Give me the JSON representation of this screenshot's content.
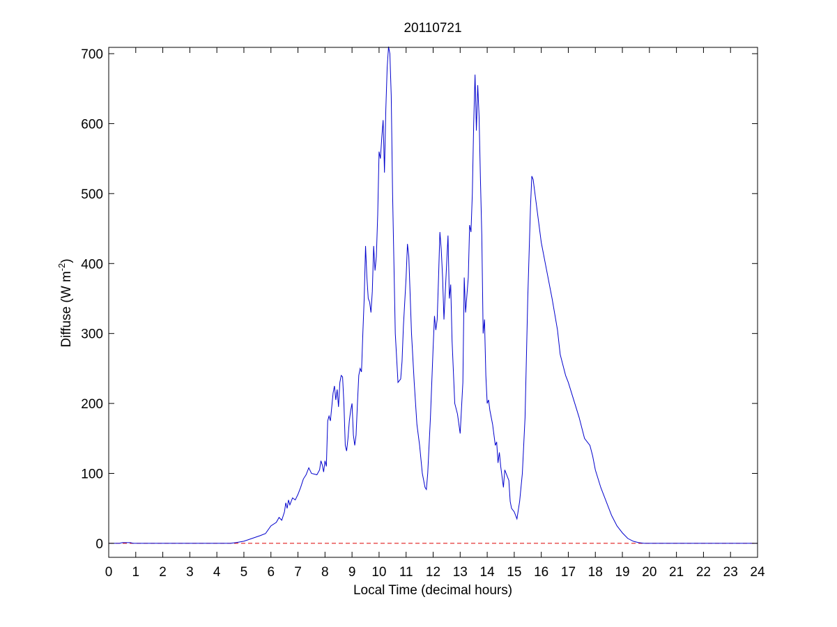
{
  "chart_data": {
    "type": "line",
    "title": "20110721",
    "xlabel": "Local Time (decimal hours)",
    "ylabel": [
      "Diffuse (W m",
      "-2",
      ")"
    ],
    "xlim": [
      0,
      24
    ],
    "ylim": [
      -20,
      709
    ],
    "xticks": [
      0,
      1,
      2,
      3,
      4,
      5,
      6,
      7,
      8,
      9,
      10,
      11,
      12,
      13,
      14,
      15,
      16,
      17,
      18,
      19,
      20,
      21,
      22,
      23,
      24
    ],
    "yticks": [
      0,
      100,
      200,
      300,
      400,
      500,
      600,
      700
    ],
    "reference_line": {
      "value": 0,
      "color": "#dd0000",
      "style": "dashed"
    },
    "series": [
      {
        "color": "#0000cc",
        "x": [
          0,
          0.4,
          0.5,
          0.8,
          0.9,
          4.5,
          4.7,
          5.0,
          5.3,
          5.6,
          5.8,
          6.0,
          6.2,
          6.3,
          6.4,
          6.5,
          6.55,
          6.6,
          6.65,
          6.7,
          6.8,
          6.9,
          7.0,
          7.1,
          7.2,
          7.3,
          7.4,
          7.5,
          7.7,
          7.8,
          7.85,
          7.9,
          7.95,
          8.0,
          8.05,
          8.1,
          8.15,
          8.2,
          8.3,
          8.35,
          8.4,
          8.45,
          8.5,
          8.55,
          8.6,
          8.65,
          8.7,
          8.75,
          8.8,
          8.85,
          8.9,
          8.95,
          9.0,
          9.05,
          9.1,
          9.15,
          9.2,
          9.25,
          9.3,
          9.35,
          9.4,
          9.45,
          9.5,
          9.55,
          9.6,
          9.65,
          9.7,
          9.75,
          9.8,
          9.85,
          9.9,
          9.95,
          10.0,
          10.05,
          10.1,
          10.15,
          10.2,
          10.25,
          10.3,
          10.35,
          10.4,
          10.45,
          10.5,
          10.6,
          10.7,
          10.8,
          10.85,
          10.9,
          11.0,
          11.05,
          11.1,
          11.2,
          11.3,
          11.4,
          11.5,
          11.6,
          11.7,
          11.75,
          11.8,
          11.9,
          12.0,
          12.05,
          12.1,
          12.15,
          12.2,
          12.25,
          12.3,
          12.35,
          12.4,
          12.45,
          12.5,
          12.55,
          12.6,
          12.65,
          12.7,
          12.8,
          12.9,
          13.0,
          13.1,
          13.15,
          13.2,
          13.3,
          13.35,
          13.4,
          13.45,
          13.5,
          13.55,
          13.6,
          13.65,
          13.7,
          13.75,
          13.8,
          13.85,
          13.9,
          13.95,
          14.0,
          14.05,
          14.1,
          14.2,
          14.3,
          14.35,
          14.4,
          14.45,
          14.5,
          14.6,
          14.65,
          14.7,
          14.8,
          14.85,
          14.9,
          15.0,
          15.1,
          15.2,
          15.3,
          15.4,
          15.5,
          15.6,
          15.65,
          15.7,
          15.8,
          15.9,
          16.0,
          16.2,
          16.4,
          16.6,
          16.7,
          16.8,
          16.9,
          17.0,
          17.2,
          17.4,
          17.6,
          17.8,
          17.9,
          18.0,
          18.2,
          18.4,
          18.6,
          18.8,
          19.0,
          19.2,
          19.4,
          19.6,
          19.8,
          20.2,
          24
        ],
        "values": [
          0,
          0,
          1,
          1,
          0,
          0,
          1,
          3,
          7,
          11,
          14,
          25,
          30,
          37,
          33,
          45,
          58,
          50,
          62,
          55,
          65,
          62,
          70,
          80,
          92,
          98,
          108,
          100,
          98,
          105,
          118,
          112,
          102,
          118,
          110,
          175,
          182,
          175,
          215,
          225,
          205,
          220,
          195,
          230,
          240,
          238,
          200,
          140,
          132,
          150,
          175,
          190,
          200,
          155,
          140,
          155,
          200,
          240,
          250,
          245,
          300,
          350,
          425,
          380,
          350,
          345,
          330,
          360,
          425,
          390,
          410,
          470,
          560,
          550,
          580,
          605,
          530,
          620,
          680,
          710,
          700,
          640,
          500,
          300,
          230,
          235,
          260,
          310,
          380,
          428,
          410,
          300,
          230,
          170,
          140,
          100,
          80,
          77,
          100,
          180,
          280,
          325,
          305,
          320,
          380,
          445,
          420,
          380,
          320,
          360,
          400,
          440,
          350,
          370,
          290,
          200,
          185,
          157,
          230,
          380,
          330,
          380,
          455,
          445,
          500,
          600,
          670,
          590,
          655,
          610,
          520,
          440,
          300,
          320,
          240,
          200,
          205,
          190,
          170,
          140,
          145,
          115,
          130,
          110,
          80,
          105,
          100,
          90,
          60,
          50,
          45,
          35,
          60,
          100,
          180,
          350,
          480,
          525,
          520,
          490,
          460,
          430,
          390,
          350,
          305,
          270,
          255,
          240,
          230,
          205,
          180,
          150,
          140,
          125,
          105,
          80,
          60,
          40,
          25,
          15,
          7,
          3,
          1,
          0,
          0,
          0
        ]
      }
    ]
  }
}
